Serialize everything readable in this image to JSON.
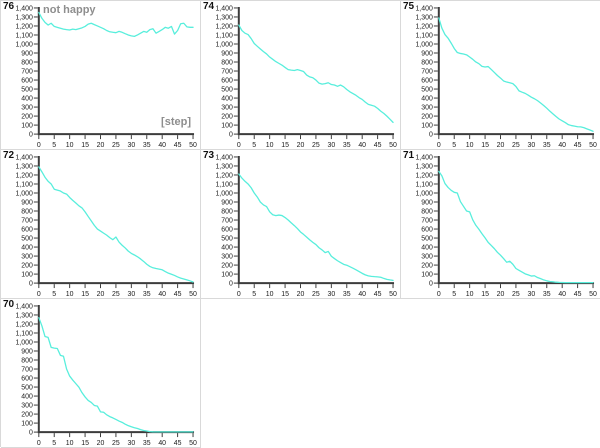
{
  "style": {
    "line_color": "#58eedc",
    "axis_color": "#3c3c3c",
    "tick_label_color": "#1a1a1a",
    "note_color": "#8e8e8e",
    "grid_border_color": "#d9d9d9",
    "chart_id_color": "#111111",
    "background": "#ffffff"
  },
  "axes": {
    "y_tick_labels": [
      "0",
      "100",
      "200",
      "300",
      "400",
      "500",
      "600",
      "700",
      "800",
      "900",
      "1,000",
      "1,100",
      "1,200",
      "1,300",
      "1,400"
    ],
    "x_tick_labels": [
      "0",
      "5",
      "10",
      "15",
      "20",
      "25",
      "30",
      "35",
      "40",
      "45",
      "50"
    ],
    "y_range": [
      0,
      1400
    ],
    "x_range": [
      0,
      50
    ],
    "grid": "off",
    "legend": "none"
  },
  "chart_data": [
    {
      "type": "line",
      "title": "76",
      "annotation": "not happy",
      "x_note": "[step]",
      "xlabel": "[step]",
      "ylabel": "",
      "x_range": [
        0,
        50
      ],
      "y_range": [
        0,
        1400
      ],
      "x_step": 1,
      "values": [
        1350,
        1285,
        1240,
        1210,
        1230,
        1195,
        1185,
        1175,
        1165,
        1160,
        1155,
        1165,
        1160,
        1170,
        1180,
        1195,
        1220,
        1230,
        1215,
        1200,
        1185,
        1170,
        1150,
        1135,
        1130,
        1125,
        1140,
        1130,
        1115,
        1100,
        1090,
        1085,
        1100,
        1120,
        1140,
        1130,
        1160,
        1170,
        1120,
        1140,
        1160,
        1185,
        1175,
        1195,
        1110,
        1150,
        1225,
        1230,
        1190,
        1185,
        1185
      ]
    },
    {
      "type": "line",
      "title": "74",
      "x_range": [
        0,
        50
      ],
      "y_range": [
        0,
        1400
      ],
      "x_step": 1,
      "values": [
        1210,
        1150,
        1120,
        1105,
        1060,
        1005,
        975,
        945,
        915,
        890,
        855,
        830,
        805,
        785,
        765,
        740,
        715,
        710,
        705,
        715,
        705,
        695,
        655,
        635,
        625,
        600,
        565,
        555,
        560,
        570,
        550,
        545,
        530,
        545,
        525,
        495,
        470,
        450,
        430,
        405,
        385,
        355,
        330,
        320,
        310,
        285,
        255,
        230,
        200,
        165,
        130
      ]
    },
    {
      "type": "line",
      "title": "75",
      "x_range": [
        0,
        50
      ],
      "y_range": [
        0,
        1400
      ],
      "x_step": 1,
      "values": [
        1290,
        1175,
        1105,
        1065,
        1010,
        950,
        905,
        895,
        888,
        880,
        855,
        830,
        800,
        782,
        752,
        745,
        750,
        718,
        685,
        650,
        622,
        590,
        578,
        570,
        560,
        528,
        480,
        465,
        452,
        432,
        410,
        392,
        372,
        345,
        318,
        288,
        255,
        225,
        195,
        168,
        148,
        128,
        105,
        95,
        88,
        82,
        80,
        72,
        58,
        45,
        32
      ]
    },
    {
      "type": "line",
      "title": "72",
      "x_range": [
        0,
        50
      ],
      "y_range": [
        0,
        1400
      ],
      "x_step": 1,
      "values": [
        1290,
        1235,
        1175,
        1130,
        1100,
        1042,
        1032,
        1022,
        1000,
        988,
        950,
        918,
        888,
        858,
        835,
        790,
        740,
        690,
        640,
        600,
        578,
        555,
        532,
        505,
        482,
        512,
        455,
        420,
        390,
        355,
        330,
        312,
        292,
        268,
        240,
        210,
        185,
        170,
        162,
        155,
        148,
        128,
        110,
        98,
        85,
        68,
        55,
        45,
        35,
        25,
        12
      ]
    },
    {
      "type": "line",
      "title": "73",
      "x_range": [
        0,
        50
      ],
      "y_range": [
        0,
        1400
      ],
      "x_step": 1,
      "values": [
        1210,
        1165,
        1130,
        1100,
        1058,
        1000,
        955,
        898,
        868,
        850,
        792,
        758,
        748,
        755,
        750,
        728,
        700,
        668,
        638,
        605,
        568,
        540,
        510,
        480,
        452,
        428,
        392,
        368,
        338,
        352,
        298,
        272,
        248,
        228,
        208,
        198,
        182,
        165,
        148,
        128,
        108,
        92,
        80,
        75,
        72,
        70,
        65,
        52,
        42,
        35,
        30
      ]
    },
    {
      "type": "line",
      "title": "71",
      "x_range": [
        0,
        50
      ],
      "y_range": [
        0,
        1400
      ],
      "x_step": 1,
      "values": [
        1240,
        1190,
        1105,
        1062,
        1030,
        1008,
        1000,
        905,
        852,
        800,
        790,
        702,
        642,
        598,
        548,
        502,
        452,
        418,
        382,
        342,
        310,
        272,
        232,
        242,
        210,
        162,
        142,
        122,
        102,
        92,
        78,
        82,
        62,
        50,
        35,
        25,
        18,
        14,
        10,
        8,
        7,
        6,
        5,
        5,
        5,
        5,
        5,
        5,
        5,
        5,
        5
      ]
    },
    {
      "type": "line",
      "title": "70",
      "x_range": [
        0,
        50
      ],
      "y_range": [
        0,
        1400
      ],
      "x_step": 1,
      "values": [
        1270,
        1180,
        1062,
        1052,
        940,
        932,
        928,
        852,
        842,
        700,
        622,
        578,
        538,
        498,
        438,
        390,
        352,
        330,
        295,
        288,
        225,
        220,
        192,
        172,
        158,
        140,
        122,
        108,
        88,
        72,
        60,
        48,
        40,
        28,
        18,
        12,
        5,
        3,
        2,
        2,
        2,
        2,
        2,
        2,
        2,
        2,
        2,
        2,
        2,
        2,
        2
      ]
    }
  ]
}
